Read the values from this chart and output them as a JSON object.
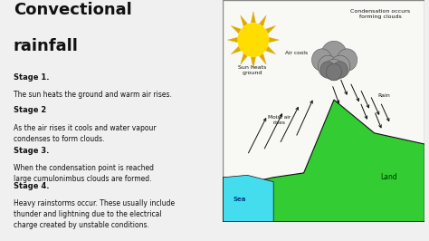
{
  "title_line1": "Convectional",
  "title_line2": "rainfall",
  "bg_color": "#f0f0f0",
  "panel_bg": "#f2f2f2",
  "diagram_bg": "#f8f8f5",
  "stage1_bold": "Stage 1.",
  "stage1_text": "The sun heats the ground and warm air rises.",
  "stage2_bold": "Stage 2",
  "stage2_text": "As the air rises it cools and water vapour\ncondenses to form clouds.",
  "stage3_bold": "Stage 3.",
  "stage3_text": "When the condensation point is reached\nlarge cumulonimbus clouds are formed.",
  "stage4_bold": "Stage 4.",
  "stage4_text": "Heavy rainstorms occur. These usually include\nthunder and lightning due to the electrical\ncharge created by unstable conditions.",
  "sea_color": "#44ddee",
  "land_color": "#33cc33",
  "land_edge": "#111111",
  "sun_color": "#ffdd00",
  "sun_ray_color": "#ddaa00",
  "cloud_color": "#999999",
  "cloud_dark": "#777777",
  "arrow_color": "#111111",
  "text_color": "#111111",
  "label_condensation": "Condensation occurs\nforming clouds",
  "label_air_cools": "Air cools",
  "label_sun_heats": "Sun heats\nground",
  "label_moist_air": "Moist air\nrises",
  "label_rain": "Rain",
  "label_sea": "Sea",
  "label_land": "Land",
  "bottom_bar_color": "#d0d0d0"
}
